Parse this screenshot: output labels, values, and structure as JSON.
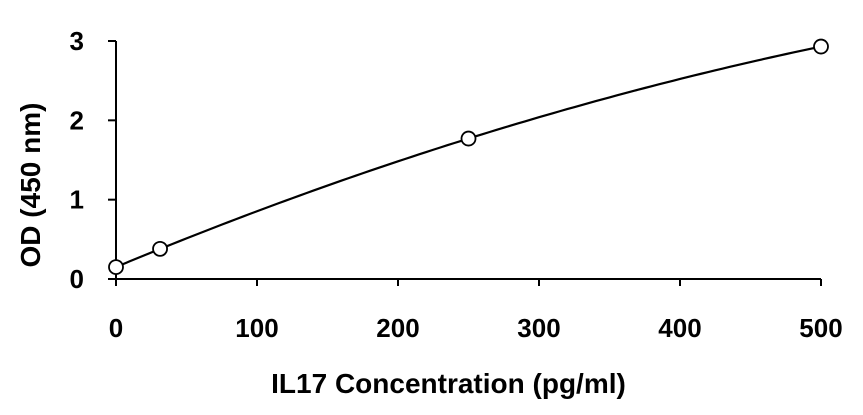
{
  "chart_data": {
    "type": "scatter",
    "title": "",
    "xlabel": "IL17 Concentration (pg/ml)",
    "ylabel": "OD (450 nm)",
    "xlim": [
      0,
      500
    ],
    "ylim": [
      0,
      3
    ],
    "xticks": [
      0,
      100,
      200,
      300,
      400,
      500
    ],
    "yticks": [
      0,
      1,
      2,
      3
    ],
    "grid": false,
    "legend": "none",
    "series": [
      {
        "x": [
          0,
          31.25,
          250,
          500
        ],
        "y": [
          0.15,
          0.38,
          1.77,
          2.93
        ],
        "marker": "open-circle",
        "trendline": "polynomial-fit",
        "color": "#000000"
      }
    ]
  }
}
